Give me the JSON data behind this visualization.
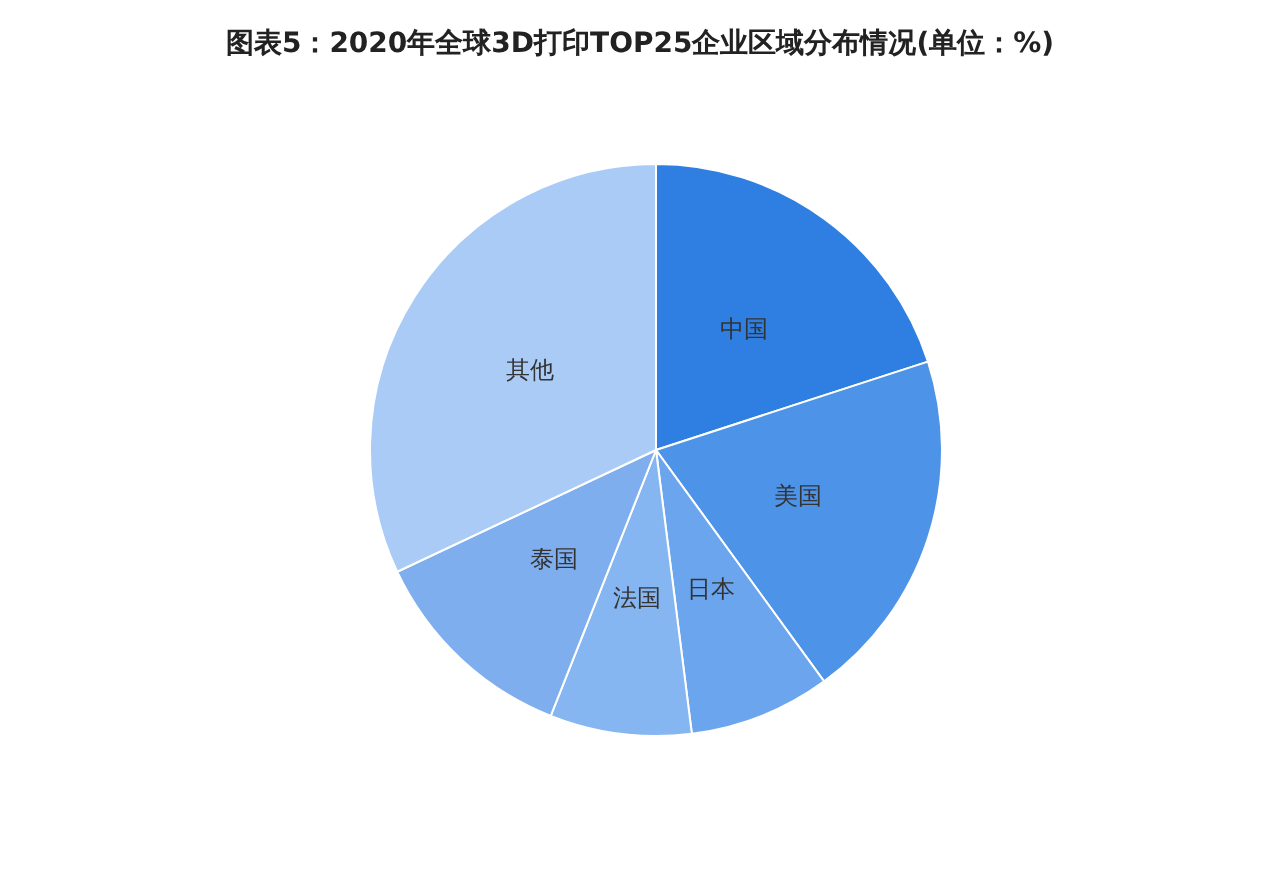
{
  "chart_data": {
    "type": "pie",
    "title": "图表5：2020年全球3D打印TOP25企业区域分布情况(单位：%)",
    "categories": [
      "中国",
      "美国",
      "日本",
      "法国",
      "泰国",
      "其他"
    ],
    "values": [
      20,
      20,
      8,
      8,
      12,
      32
    ],
    "colors": [
      "#2f7fe2",
      "#4d93e8",
      "#6aa5ee",
      "#86b6f1",
      "#7eaeee",
      "#a9cbf6"
    ],
    "legend": false
  }
}
